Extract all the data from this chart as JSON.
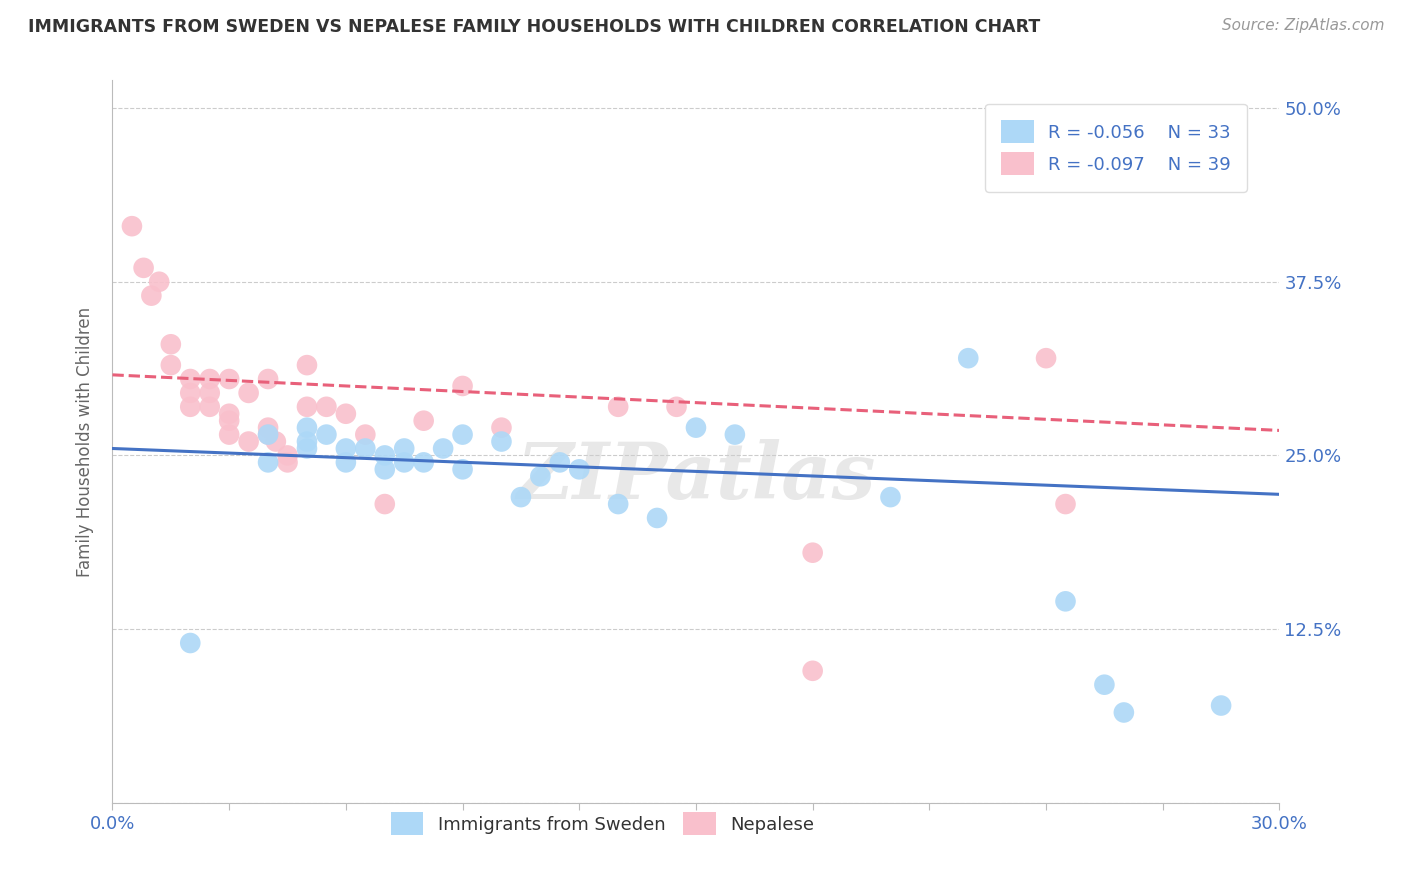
{
  "title": "IMMIGRANTS FROM SWEDEN VS NEPALESE FAMILY HOUSEHOLDS WITH CHILDREN CORRELATION CHART",
  "source": "Source: ZipAtlas.com",
  "ylabel": "Family Households with Children",
  "xlim": [
    0.0,
    0.3
  ],
  "ylim": [
    0.0,
    0.52
  ],
  "x_ticks": [
    0.0,
    0.03,
    0.06,
    0.09,
    0.12,
    0.15,
    0.18,
    0.21,
    0.24,
    0.27,
    0.3
  ],
  "y_ticks": [
    0.0,
    0.125,
    0.25,
    0.375,
    0.5
  ],
  "y_tick_labels": [
    "",
    "12.5%",
    "25.0%",
    "37.5%",
    "50.0%"
  ],
  "legend_r1": "R = -0.056",
  "legend_n1": "N = 33",
  "legend_r2": "R = -0.097",
  "legend_n2": "N = 39",
  "legend_label1": "Immigrants from Sweden",
  "legend_label2": "Nepalese",
  "color_blue": "#ADD8F7",
  "color_pink": "#F9C0CC",
  "line_color_blue": "#4472C4",
  "line_color_pink": "#E8607A",
  "watermark": "ZIPatlas",
  "blue_scatter_x": [
    0.02,
    0.04,
    0.04,
    0.05,
    0.05,
    0.05,
    0.055,
    0.06,
    0.06,
    0.065,
    0.07,
    0.07,
    0.075,
    0.075,
    0.08,
    0.085,
    0.09,
    0.09,
    0.1,
    0.105,
    0.11,
    0.115,
    0.12,
    0.13,
    0.14,
    0.15,
    0.16,
    0.2,
    0.22,
    0.245,
    0.255,
    0.26,
    0.285
  ],
  "blue_scatter_y": [
    0.115,
    0.265,
    0.245,
    0.255,
    0.26,
    0.27,
    0.265,
    0.245,
    0.255,
    0.255,
    0.24,
    0.25,
    0.245,
    0.255,
    0.245,
    0.255,
    0.265,
    0.24,
    0.26,
    0.22,
    0.235,
    0.245,
    0.24,
    0.215,
    0.205,
    0.27,
    0.265,
    0.22,
    0.32,
    0.145,
    0.085,
    0.065,
    0.07
  ],
  "pink_scatter_x": [
    0.005,
    0.008,
    0.01,
    0.012,
    0.015,
    0.015,
    0.02,
    0.02,
    0.02,
    0.025,
    0.025,
    0.025,
    0.03,
    0.03,
    0.03,
    0.03,
    0.035,
    0.035,
    0.04,
    0.04,
    0.04,
    0.042,
    0.045,
    0.045,
    0.05,
    0.05,
    0.055,
    0.06,
    0.065,
    0.07,
    0.08,
    0.09,
    0.1,
    0.13,
    0.145,
    0.18,
    0.18,
    0.24,
    0.245
  ],
  "pink_scatter_y": [
    0.415,
    0.385,
    0.365,
    0.375,
    0.315,
    0.33,
    0.305,
    0.295,
    0.285,
    0.305,
    0.295,
    0.285,
    0.305,
    0.275,
    0.28,
    0.265,
    0.295,
    0.26,
    0.305,
    0.27,
    0.265,
    0.26,
    0.25,
    0.245,
    0.315,
    0.285,
    0.285,
    0.28,
    0.265,
    0.215,
    0.275,
    0.3,
    0.27,
    0.285,
    0.285,
    0.18,
    0.095,
    0.32,
    0.215
  ],
  "blue_line_x": [
    0.0,
    0.3
  ],
  "blue_line_y": [
    0.255,
    0.222
  ],
  "pink_line_x": [
    0.0,
    0.3
  ],
  "pink_line_y": [
    0.308,
    0.268
  ]
}
